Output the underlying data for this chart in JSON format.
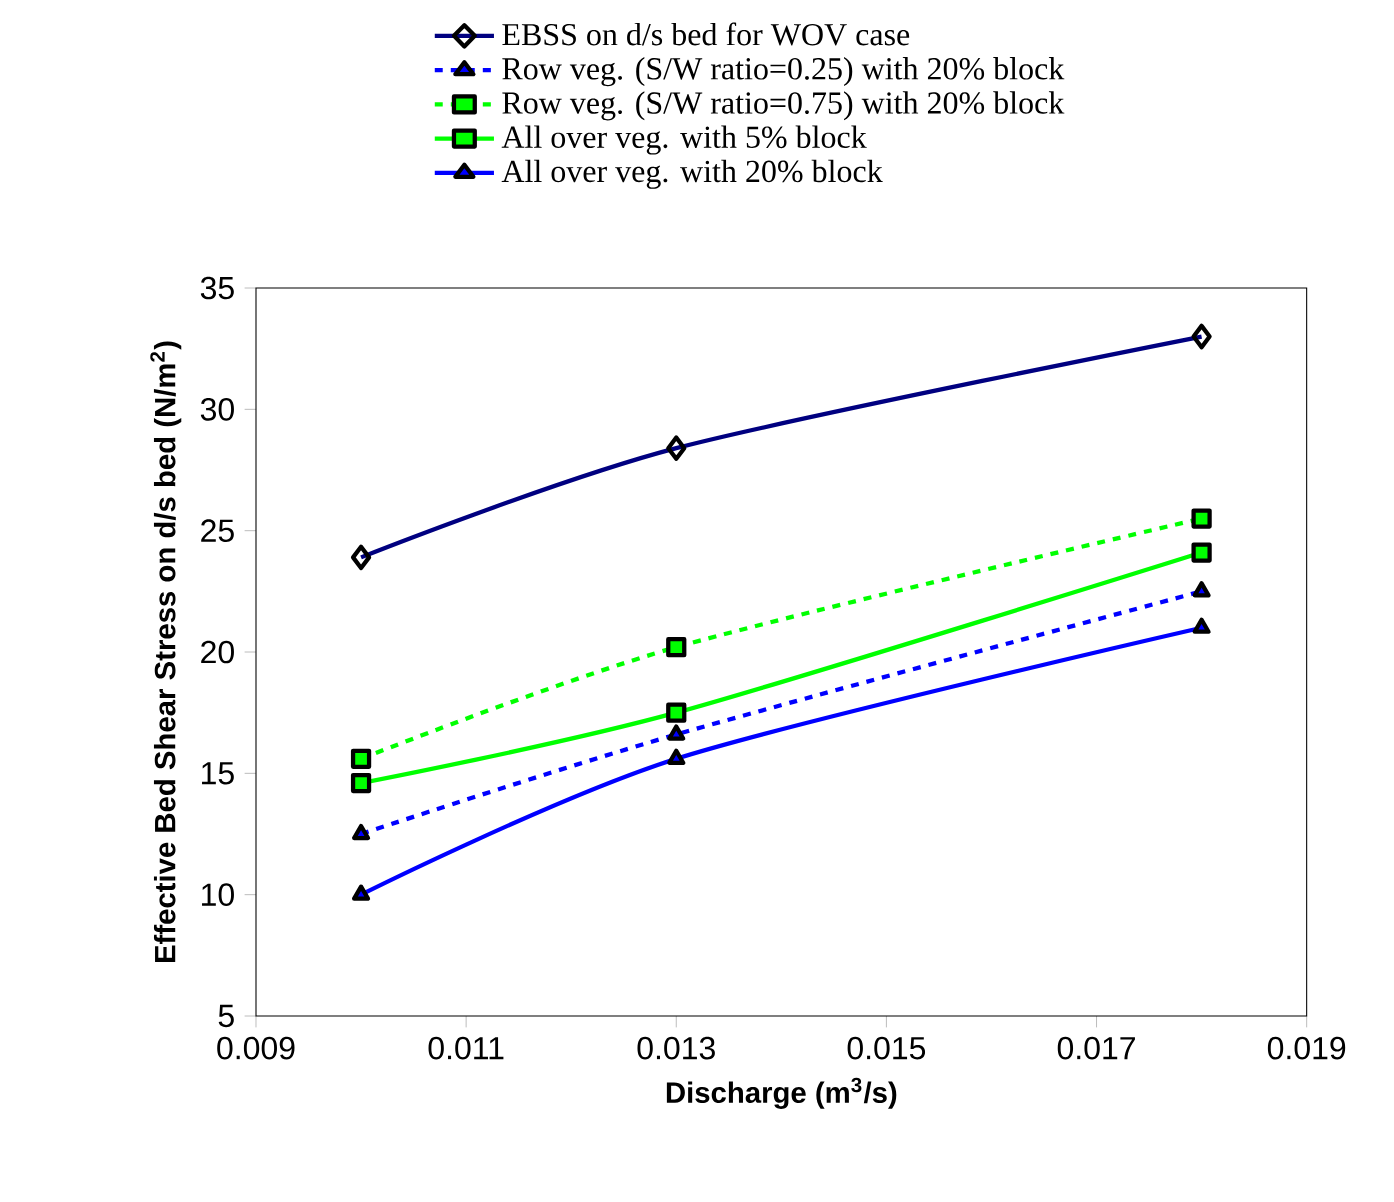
{
  "chart_data": {
    "type": "line",
    "xlabel": "Discharge (m$^{3}$/s)",
    "ylabel": "Effective Bed Shear Stress on d/s bed (N/m$^{2}$)",
    "x": [
      0.01,
      0.013,
      0.018
    ],
    "xlim": [
      0.009,
      0.019
    ],
    "xticks": [
      0.009,
      0.011,
      0.013,
      0.015,
      0.017,
      0.019
    ],
    "ylim": [
      5,
      35
    ],
    "yticks": [
      5,
      10,
      15,
      20,
      25,
      30,
      35
    ],
    "grid": false,
    "legend": "top",
    "series": [
      {
        "name": "EBSS on d/s bed for WOV case",
        "color": "#000080",
        "marker": "diamond",
        "line_style": "solid",
        "values": [
          23.9,
          28.4,
          33.0
        ]
      },
      {
        "name": "Row veg. (S/W ratio=0.25) with 20% block",
        "color": "#0000ff",
        "marker": "triangle",
        "line_style": "dashed",
        "values": [
          12.5,
          16.6,
          22.5
        ]
      },
      {
        "name": "Row veg. (S/W ratio=0.75) with 20% block",
        "color": "#00ff00",
        "marker": "square",
        "line_style": "dashed",
        "values": [
          15.6,
          20.2,
          25.5
        ]
      },
      {
        "name": "All over veg. with 5% block",
        "color": "#00ff00",
        "marker": "square",
        "line_style": "solid",
        "values": [
          14.6,
          17.5,
          24.1
        ]
      },
      {
        "name": "All over veg. with 20% block",
        "color": "#0000ff",
        "marker": "triangle",
        "line_style": "solid",
        "values": [
          10.0,
          15.6,
          21.0
        ]
      }
    ]
  }
}
